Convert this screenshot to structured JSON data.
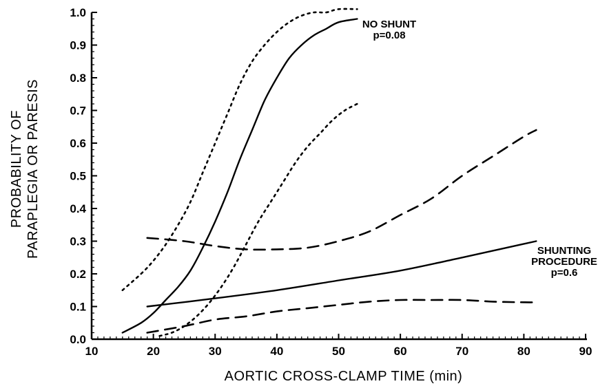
{
  "chart_data": {
    "type": "line",
    "title": "",
    "xlabel": "AORTIC CROSS-CLAMP TIME (min)",
    "ylabel": [
      "PROBABILITY OF",
      "PARAPLEGIA OR PARESIS"
    ],
    "xlim": [
      10,
      90
    ],
    "ylim": [
      0.0,
      1.0
    ],
    "xticks": [
      "10",
      "20",
      "30",
      "40",
      "50",
      "60",
      "70",
      "80",
      "90"
    ],
    "yticks": [
      "0.0",
      "0.1",
      "0.2",
      "0.3",
      "0.4",
      "0.5",
      "0.6",
      "0.7",
      "0.8",
      "0.9",
      "1.0"
    ],
    "grid": false,
    "series": [
      {
        "group": "no-shunt",
        "role": "estimate",
        "style": "solid",
        "x": [
          15,
          18,
          20,
          22,
          24,
          26,
          28,
          30,
          32,
          34,
          36,
          38,
          40,
          42,
          44,
          46,
          48,
          50,
          53
        ],
        "y": [
          0.02,
          0.05,
          0.08,
          0.12,
          0.16,
          0.21,
          0.28,
          0.36,
          0.45,
          0.55,
          0.64,
          0.73,
          0.8,
          0.86,
          0.9,
          0.93,
          0.95,
          0.97,
          0.98
        ]
      },
      {
        "group": "no-shunt",
        "role": "upper-bound",
        "style": "dotted",
        "x": [
          15,
          18,
          20,
          22,
          24,
          26,
          28,
          30,
          32,
          34,
          36,
          38,
          40,
          42,
          44,
          46,
          48,
          50,
          53
        ],
        "y": [
          0.15,
          0.2,
          0.24,
          0.29,
          0.35,
          0.42,
          0.51,
          0.6,
          0.69,
          0.78,
          0.85,
          0.9,
          0.94,
          0.97,
          0.99,
          1.0,
          1.0,
          1.01,
          1.01
        ]
      },
      {
        "group": "no-shunt",
        "role": "lower-bound",
        "style": "dotted",
        "x": [
          21,
          23,
          25,
          27,
          29,
          31,
          33,
          35,
          37,
          39,
          41,
          43,
          45,
          47,
          49,
          51,
          53
        ],
        "y": [
          0.01,
          0.02,
          0.04,
          0.07,
          0.11,
          0.16,
          0.22,
          0.29,
          0.36,
          0.42,
          0.48,
          0.54,
          0.59,
          0.63,
          0.67,
          0.7,
          0.72
        ]
      },
      {
        "group": "shunting-procedure",
        "role": "estimate",
        "style": "solid",
        "x": [
          19,
          30,
          40,
          50,
          60,
          70,
          82
        ],
        "y": [
          0.1,
          0.125,
          0.15,
          0.18,
          0.21,
          0.25,
          0.3
        ]
      },
      {
        "group": "shunting-procedure",
        "role": "upper-bound",
        "style": "dashed",
        "x": [
          19,
          25,
          30,
          35,
          40,
          45,
          50,
          55,
          60,
          65,
          70,
          75,
          80,
          82
        ],
        "y": [
          0.31,
          0.3,
          0.285,
          0.275,
          0.275,
          0.28,
          0.3,
          0.33,
          0.38,
          0.43,
          0.5,
          0.56,
          0.62,
          0.64
        ]
      },
      {
        "group": "shunting-procedure",
        "role": "lower-bound",
        "style": "dashed",
        "x": [
          19,
          25,
          30,
          35,
          40,
          45,
          50,
          55,
          60,
          65,
          70,
          75,
          80,
          82
        ],
        "y": [
          0.02,
          0.04,
          0.06,
          0.07,
          0.085,
          0.095,
          0.105,
          0.115,
          0.12,
          0.12,
          0.12,
          0.115,
          0.113,
          0.113
        ]
      }
    ],
    "annotations": [
      {
        "lines": [
          "NO SHUNT",
          "p=0.08"
        ]
      },
      {
        "lines": [
          "SHUNTING",
          "PROCEDURE",
          "p=0.6"
        ]
      }
    ]
  }
}
